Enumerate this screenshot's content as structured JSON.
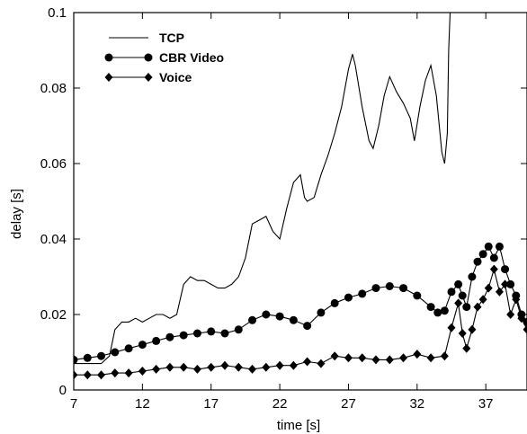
{
  "chart_data": {
    "type": "line",
    "title": "",
    "xlabel": "time [s]",
    "ylabel": "delay [s]",
    "xlim": [
      7,
      40
    ],
    "ylim": [
      0,
      0.1
    ],
    "xticks": [
      7,
      12,
      17,
      22,
      27,
      32,
      37
    ],
    "xtick_labels": [
      "7",
      "12",
      "17",
      "22",
      "27",
      "32",
      "37"
    ],
    "yticks": [
      0,
      0.02,
      0.04,
      0.06,
      0.08,
      0.1
    ],
    "ytick_labels": [
      "0",
      "0.02",
      "0.04",
      "0.06",
      "0.08",
      "0.1"
    ],
    "grid": false,
    "legend_position": "top-left",
    "series": [
      {
        "name": "TCP",
        "marker": "none",
        "color": "#000000",
        "x": [
          7,
          8,
          9,
          9.6,
          10,
          10.5,
          11,
          11.5,
          12,
          12.5,
          13,
          13.5,
          14,
          14.5,
          15,
          15.5,
          16,
          16.5,
          17,
          17.5,
          18,
          18.5,
          19,
          19.5,
          20,
          20.5,
          21,
          21.5,
          22,
          22.5,
          23,
          23.5,
          23.8,
          24,
          24.5,
          25,
          25.5,
          26,
          26.5,
          27,
          27.3,
          27.5,
          28,
          28.5,
          28.8,
          29.2,
          29.6,
          30,
          30.5,
          31,
          31.5,
          31.8,
          32.2,
          32.6,
          33,
          33.4,
          33.8,
          34,
          34.2,
          34.3,
          34.4
        ],
        "y": [
          0.007,
          0.007,
          0.007,
          0.009,
          0.016,
          0.018,
          0.018,
          0.019,
          0.018,
          0.019,
          0.02,
          0.02,
          0.019,
          0.02,
          0.028,
          0.03,
          0.029,
          0.029,
          0.028,
          0.027,
          0.027,
          0.028,
          0.03,
          0.035,
          0.044,
          0.045,
          0.046,
          0.042,
          0.04,
          0.048,
          0.055,
          0.057,
          0.051,
          0.05,
          0.051,
          0.057,
          0.062,
          0.068,
          0.075,
          0.085,
          0.089,
          0.086,
          0.075,
          0.066,
          0.064,
          0.07,
          0.078,
          0.083,
          0.079,
          0.076,
          0.072,
          0.066,
          0.075,
          0.082,
          0.086,
          0.078,
          0.063,
          0.06,
          0.068,
          0.09,
          0.1
        ]
      },
      {
        "name": "CBR Video",
        "marker": "circle",
        "color": "#000000",
        "x": [
          7,
          8,
          9,
          10,
          11,
          12,
          13,
          14,
          15,
          16,
          17,
          18,
          19,
          20,
          21,
          22,
          23,
          24,
          25,
          26,
          27,
          28,
          29,
          30,
          31,
          32,
          33,
          33.5,
          34,
          34.5,
          35,
          35.3,
          35.6,
          36,
          36.4,
          36.8,
          37.2,
          37.6,
          38,
          38.4,
          38.8,
          39.2,
          39.6,
          40
        ],
        "y": [
          0.008,
          0.0085,
          0.009,
          0.01,
          0.011,
          0.012,
          0.013,
          0.014,
          0.0145,
          0.015,
          0.0155,
          0.015,
          0.016,
          0.0185,
          0.02,
          0.0195,
          0.0185,
          0.017,
          0.0205,
          0.023,
          0.0245,
          0.0255,
          0.027,
          0.0275,
          0.027,
          0.025,
          0.022,
          0.0205,
          0.021,
          0.026,
          0.028,
          0.025,
          0.022,
          0.03,
          0.034,
          0.036,
          0.038,
          0.035,
          0.038,
          0.032,
          0.028,
          0.025,
          0.02,
          0.018
        ]
      },
      {
        "name": "Voice",
        "marker": "diamond",
        "color": "#000000",
        "x": [
          7,
          8,
          9,
          10,
          11,
          12,
          13,
          14,
          15,
          16,
          17,
          18,
          19,
          20,
          21,
          22,
          23,
          24,
          25,
          26,
          27,
          28,
          29,
          30,
          31,
          32,
          33,
          34,
          34.5,
          35,
          35.3,
          35.6,
          36,
          36.4,
          36.8,
          37.2,
          37.6,
          38,
          38.4,
          38.8,
          39.2,
          39.6,
          40
        ],
        "y": [
          0.004,
          0.004,
          0.004,
          0.0045,
          0.0045,
          0.005,
          0.0055,
          0.006,
          0.006,
          0.0055,
          0.006,
          0.0065,
          0.006,
          0.0055,
          0.006,
          0.0065,
          0.0065,
          0.0075,
          0.007,
          0.009,
          0.0085,
          0.0085,
          0.008,
          0.008,
          0.0085,
          0.0095,
          0.0085,
          0.009,
          0.0165,
          0.023,
          0.015,
          0.011,
          0.016,
          0.022,
          0.024,
          0.027,
          0.032,
          0.026,
          0.028,
          0.02,
          0.024,
          0.019,
          0.016
        ]
      }
    ]
  }
}
